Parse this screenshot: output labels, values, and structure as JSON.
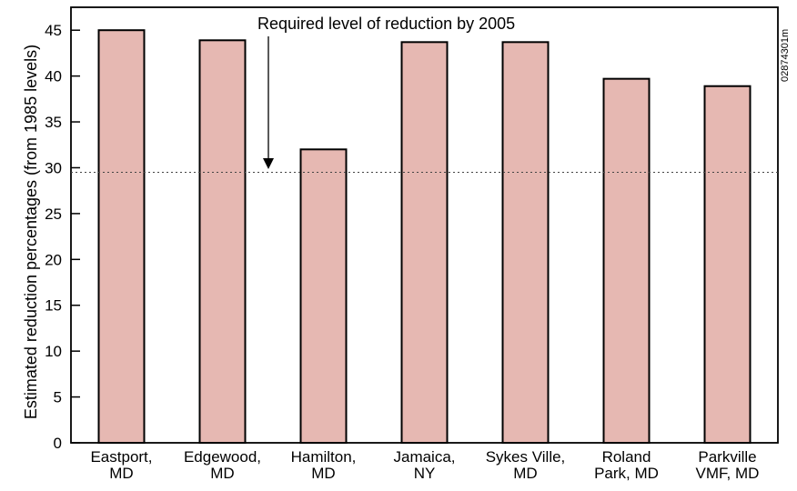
{
  "chart_data": {
    "type": "bar",
    "categories": [
      [
        "Eastport,",
        "MD"
      ],
      [
        "Edgewood,",
        "MD"
      ],
      [
        "Hamilton,",
        "MD"
      ],
      [
        "Jamaica,",
        "NY"
      ],
      [
        "Sykes Ville,",
        "MD"
      ],
      [
        "Roland",
        "Park, MD"
      ],
      [
        "Parkville",
        "VMF, MD"
      ]
    ],
    "values": [
      45,
      43.9,
      32,
      43.7,
      43.7,
      39.7,
      38.9
    ],
    "ylabel": "Estimated reduction percentages (from 1985 levels)",
    "xlabel": "",
    "ylim": [
      0,
      47.5
    ],
    "yticks": [
      0,
      5,
      10,
      15,
      20,
      25,
      30,
      35,
      40,
      45
    ],
    "reference_line": {
      "value": 29.5,
      "style": "dotted"
    },
    "annotation": {
      "text": "Required level of reduction by 2005",
      "points_to_value": 29.5
    },
    "bar_color": "#e6b8b2",
    "bar_edge_color": "#000000",
    "grid": false
  },
  "figure_id": "02874301m"
}
